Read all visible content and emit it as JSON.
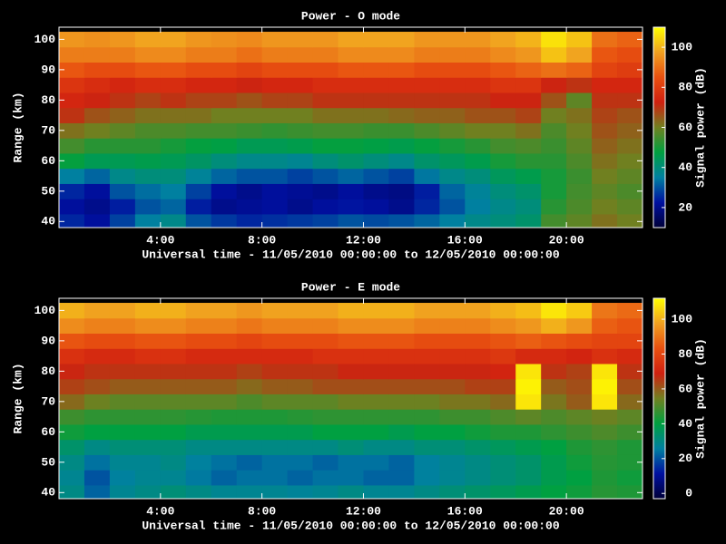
{
  "chart_data": [
    {
      "type": "heatmap",
      "title": "Power - O mode",
      "xlabel": "Universal time - 11/05/2010 00:00:00 to 12/05/2010 00:00:00",
      "ylabel": "Range (km)",
      "colorbar_label": "Signal power (dB)",
      "x": [
        0.5,
        1.5,
        2.5,
        3.5,
        4.5,
        5.5,
        6.5,
        7.5,
        8.5,
        9.5,
        10.5,
        11.5,
        12.5,
        13.5,
        14.5,
        15.5,
        16.5,
        17.5,
        18.5,
        19.5,
        20.5,
        21.5,
        22.5
      ],
      "y": [
        40,
        45,
        50,
        55,
        60,
        65,
        70,
        75,
        80,
        85,
        90,
        95,
        100
      ],
      "values": [
        [
          25,
          22,
          28,
          35,
          38,
          30,
          27,
          25,
          26,
          27,
          28,
          30,
          29,
          30,
          32,
          35,
          38,
          40,
          42,
          55,
          58,
          62,
          60
        ],
        [
          22,
          20,
          24,
          30,
          32,
          24,
          20,
          21,
          22,
          20,
          22,
          23,
          22,
          20,
          25,
          30,
          35,
          38,
          40,
          52,
          56,
          60,
          58
        ],
        [
          25,
          22,
          30,
          33,
          35,
          28,
          22,
          20,
          22,
          21,
          20,
          22,
          20,
          19,
          24,
          32,
          36,
          40,
          42,
          50,
          55,
          58,
          56
        ],
        [
          35,
          32,
          38,
          40,
          40,
          36,
          32,
          30,
          30,
          28,
          30,
          32,
          30,
          28,
          34,
          38,
          40,
          44,
          46,
          50,
          54,
          60,
          58
        ],
        [
          48,
          45,
          45,
          46,
          45,
          43,
          40,
          38,
          38,
          37,
          40,
          42,
          40,
          38,
          42,
          44,
          46,
          50,
          52,
          52,
          56,
          62,
          60
        ],
        [
          55,
          52,
          52,
          52,
          50,
          48,
          47,
          45,
          45,
          46,
          48,
          48,
          47,
          46,
          48,
          50,
          52,
          55,
          56,
          54,
          58,
          64,
          62
        ],
        [
          62,
          60,
          58,
          56,
          56,
          55,
          55,
          54,
          53,
          54,
          55,
          55,
          54,
          54,
          56,
          58,
          60,
          60,
          62,
          56,
          60,
          66,
          64
        ],
        [
          70,
          66,
          64,
          62,
          62,
          62,
          60,
          60,
          60,
          60,
          62,
          62,
          62,
          63,
          64,
          64,
          66,
          66,
          68,
          60,
          62,
          68,
          66
        ],
        [
          74,
          72,
          70,
          68,
          70,
          68,
          68,
          66,
          68,
          68,
          70,
          70,
          70,
          70,
          70,
          70,
          70,
          72,
          72,
          66,
          58,
          70,
          70
        ],
        [
          78,
          76,
          74,
          76,
          76,
          74,
          74,
          72,
          74,
          74,
          76,
          76,
          76,
          76,
          76,
          76,
          76,
          78,
          78,
          72,
          70,
          74,
          74
        ],
        [
          86,
          84,
          84,
          86,
          86,
          84,
          84,
          82,
          84,
          84,
          84,
          86,
          86,
          86,
          84,
          84,
          84,
          86,
          88,
          90,
          88,
          82,
          80
        ],
        [
          92,
          92,
          92,
          94,
          94,
          92,
          92,
          90,
          92,
          92,
          92,
          94,
          94,
          94,
          92,
          92,
          92,
          94,
          96,
          102,
          98,
          86,
          84
        ],
        [
          96,
          95,
          96,
          98,
          98,
          96,
          95,
          94,
          96,
          96,
          96,
          98,
          98,
          98,
          96,
          96,
          96,
          98,
          100,
          106,
          102,
          90,
          88
        ]
      ],
      "xlim": [
        0,
        23
      ],
      "ylim": [
        38,
        104
      ],
      "xticks": [
        {
          "value": 4,
          "label": "4:00"
        },
        {
          "value": 8,
          "label": "8:00"
        },
        {
          "value": 12,
          "label": "12:00"
        },
        {
          "value": 16,
          "label": "16:00"
        },
        {
          "value": 20,
          "label": "20:00"
        }
      ],
      "yticks": [
        40,
        50,
        60,
        70,
        80,
        90,
        100
      ],
      "zlim": [
        10,
        110
      ],
      "zticks": [
        20,
        40,
        60,
        80,
        100
      ],
      "colormap": [
        "#000038",
        "#0010a0",
        "#0080a0",
        "#00a040",
        "#708020",
        "#d02010",
        "#e85010",
        "#f0a020",
        "#ffff00"
      ]
    },
    {
      "type": "heatmap",
      "title": "Power - E mode",
      "xlabel": "Universal time - 11/05/2010 00:00:00 to 12/05/2010 00:00:00",
      "ylabel": "Range (km)",
      "colorbar_label": "Signal power (dB)",
      "x": [
        0.5,
        1.5,
        2.5,
        3.5,
        4.5,
        5.5,
        6.5,
        7.5,
        8.5,
        9.5,
        10.5,
        11.5,
        12.5,
        13.5,
        14.5,
        15.5,
        16.5,
        17.5,
        18.5,
        19.5,
        20.5,
        21.5,
        22.5
      ],
      "y": [
        40,
        45,
        50,
        55,
        60,
        65,
        70,
        75,
        80,
        85,
        90,
        95,
        100
      ],
      "values": [
        [
          30,
          22,
          28,
          30,
          32,
          30,
          28,
          28,
          28,
          27,
          28,
          30,
          28,
          28,
          30,
          32,
          34,
          36,
          38,
          40,
          42,
          45,
          44
        ],
        [
          28,
          20,
          26,
          28,
          28,
          25,
          22,
          24,
          24,
          22,
          24,
          24,
          22,
          22,
          26,
          28,
          30,
          32,
          34,
          38,
          40,
          44,
          42
        ],
        [
          30,
          24,
          28,
          28,
          30,
          26,
          24,
          22,
          24,
          24,
          22,
          24,
          24,
          22,
          26,
          28,
          30,
          32,
          34,
          38,
          42,
          45,
          44
        ],
        [
          34,
          30,
          32,
          32,
          32,
          30,
          30,
          30,
          30,
          30,
          30,
          32,
          30,
          30,
          32,
          32,
          34,
          36,
          38,
          40,
          44,
          46,
          44
        ],
        [
          42,
          40,
          40,
          40,
          40,
          38,
          38,
          38,
          38,
          38,
          40,
          40,
          40,
          38,
          40,
          40,
          42,
          44,
          44,
          46,
          48,
          50,
          48
        ],
        [
          48,
          46,
          46,
          46,
          46,
          45,
          44,
          44,
          44,
          45,
          46,
          46,
          46,
          46,
          46,
          48,
          48,
          50,
          52,
          50,
          52,
          54,
          52
        ],
        [
          58,
          54,
          52,
          52,
          52,
          52,
          52,
          50,
          52,
          52,
          52,
          54,
          54,
          54,
          54,
          56,
          56,
          58,
          108,
          56,
          60,
          108,
          58
        ],
        [
          64,
          62,
          60,
          60,
          60,
          60,
          60,
          58,
          60,
          60,
          62,
          62,
          62,
          62,
          62,
          62,
          64,
          64,
          110,
          60,
          62,
          110,
          62
        ],
        [
          68,
          66,
          66,
          66,
          66,
          66,
          66,
          64,
          66,
          66,
          66,
          68,
          68,
          68,
          68,
          68,
          68,
          70,
          108,
          66,
          64,
          108,
          66
        ],
        [
          74,
          72,
          72,
          74,
          74,
          72,
          72,
          72,
          72,
          72,
          74,
          74,
          74,
          74,
          74,
          74,
          74,
          76,
          72,
          72,
          70,
          74,
          72
        ],
        [
          84,
          82,
          82,
          84,
          84,
          82,
          82,
          80,
          82,
          82,
          82,
          84,
          84,
          84,
          82,
          82,
          82,
          84,
          86,
          84,
          82,
          80,
          80
        ],
        [
          94,
          92,
          92,
          94,
          94,
          92,
          92,
          90,
          92,
          92,
          92,
          94,
          94,
          94,
          92,
          92,
          92,
          94,
          96,
          100,
          96,
          86,
          84
        ],
        [
          100,
          98,
          98,
          100,
          100,
          98,
          98,
          96,
          98,
          98,
          98,
          100,
          100,
          100,
          98,
          98,
          98,
          100,
          102,
          108,
          104,
          90,
          88
        ]
      ],
      "xlim": [
        0,
        23
      ],
      "ylim": [
        38,
        104
      ],
      "xticks": [
        {
          "value": 4,
          "label": "4:00"
        },
        {
          "value": 8,
          "label": "8:00"
        },
        {
          "value": 12,
          "label": "12:00"
        },
        {
          "value": 16,
          "label": "16:00"
        },
        {
          "value": 20,
          "label": "20:00"
        }
      ],
      "yticks": [
        40,
        50,
        60,
        70,
        80,
        90,
        100
      ],
      "zlim": [
        -3,
        112
      ],
      "zticks": [
        0,
        20,
        40,
        60,
        80,
        100
      ],
      "colormap": [
        "#000038",
        "#0010a0",
        "#0080a0",
        "#00a040",
        "#708020",
        "#d02010",
        "#e85010",
        "#f0a020",
        "#ffff00"
      ]
    }
  ]
}
